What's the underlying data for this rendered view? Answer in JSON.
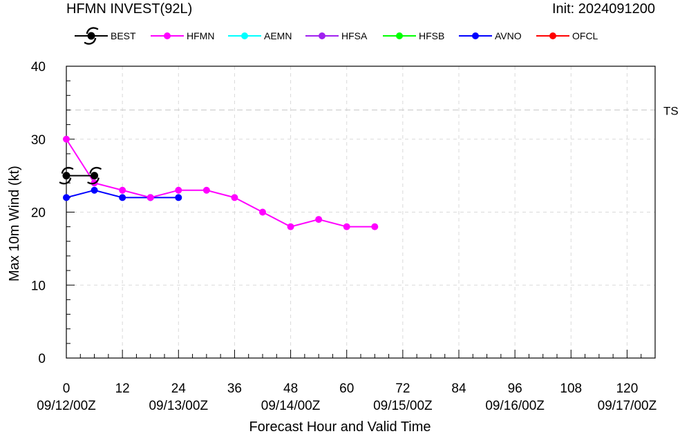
{
  "header": {
    "title": "HFMN INVEST(92L)",
    "init": "Init: 2024091200"
  },
  "chart_data": {
    "type": "line",
    "title": "HFMN INVEST(92L)",
    "xlabel": "Forecast Hour and Valid Time",
    "ylabel": "Max 10m Wind (kt)",
    "xlim": [
      0,
      126
    ],
    "ylim": [
      0,
      40
    ],
    "x_ticks": [
      0,
      12,
      24,
      36,
      48,
      60,
      72,
      84,
      96,
      108,
      120
    ],
    "x_date_labels": [
      {
        "hour": 0,
        "label": "09/12/00Z"
      },
      {
        "hour": 24,
        "label": "09/13/00Z"
      },
      {
        "hour": 48,
        "label": "09/14/00Z"
      },
      {
        "hour": 72,
        "label": "09/15/00Z"
      },
      {
        "hour": 96,
        "label": "09/16/00Z"
      },
      {
        "hour": 120,
        "label": "09/17/00Z"
      }
    ],
    "y_ticks": [
      0,
      10,
      20,
      30,
      40
    ],
    "grid": true,
    "legend_position": "top",
    "reference_lines": [
      {
        "y": 34,
        "label": "TS"
      }
    ],
    "legend": [
      {
        "name": "BEST",
        "color": "#000000"
      },
      {
        "name": "HFMN",
        "color": "#ff00ff"
      },
      {
        "name": "AEMN",
        "color": "#00ffff"
      },
      {
        "name": "HFSA",
        "color": "#a020f0"
      },
      {
        "name": "HFSB",
        "color": "#00ff00"
      },
      {
        "name": "AVNO",
        "color": "#0000ff"
      },
      {
        "name": "OFCL",
        "color": "#ff0000"
      }
    ],
    "series": [
      {
        "name": "BEST",
        "color": "#000000",
        "marker": "hurricane-symbol",
        "x": [
          0,
          6
        ],
        "y": [
          25,
          25
        ]
      },
      {
        "name": "HFMN",
        "color": "#ff00ff",
        "marker": "circle",
        "x": [
          0,
          6,
          12,
          18,
          24,
          30,
          36,
          42,
          48,
          54,
          60,
          66
        ],
        "y": [
          30,
          24,
          23,
          22,
          23,
          23,
          22,
          20,
          18,
          19,
          18,
          18
        ]
      },
      {
        "name": "AVNO",
        "color": "#0000ff",
        "marker": "circle",
        "x": [
          0,
          6,
          12,
          18,
          24
        ],
        "y": [
          22,
          23,
          22,
          22,
          22
        ]
      }
    ]
  }
}
